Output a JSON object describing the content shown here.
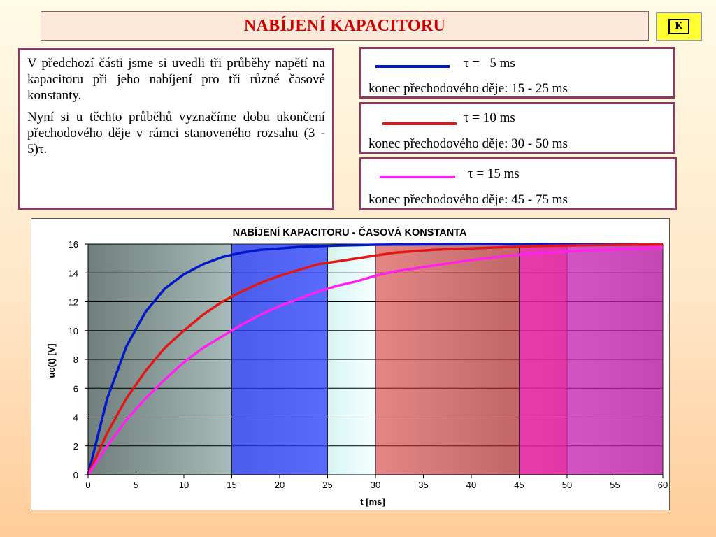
{
  "header": {
    "title": "NABÍJENÍ KAPACITORU",
    "k_button": "K"
  },
  "intro": {
    "p1": "V předchozí části jsme si uvedli tři průběhy napětí na kapacitoru při jeho nabíjení pro tři různé časové konstanty.",
    "p2": "Nyní si u těchto průběhů vyznačíme dobu ukončení přechodového děje v rámci stanoveného rozsahu (3 - 5)τ."
  },
  "legend": [
    {
      "tau": "τ =   5 ms",
      "end": "konec přechodového děje: 15 - 25 ms",
      "color": "#0018c8"
    },
    {
      "tau": "τ = 10 ms",
      "end": "konec přechodového děje: 30 - 50 ms",
      "color": "#e01818"
    },
    {
      "tau": "τ = 15 ms",
      "end": "konec přechodového děje: 45 - 75 ms",
      "color": "#ff22ee"
    }
  ],
  "chart_data": {
    "type": "line",
    "title": "NABÍJENÍ KAPACITORU - ČASOVÁ KONSTANTA",
    "xlabel": "t [ms]",
    "ylabel": "uc(t) [V]",
    "xlim": [
      0,
      60
    ],
    "ylim": [
      0,
      16
    ],
    "xticks": [
      0,
      5,
      10,
      15,
      20,
      25,
      30,
      35,
      40,
      45,
      50,
      55,
      60
    ],
    "yticks": [
      0,
      2,
      4,
      6,
      8,
      10,
      12,
      14,
      16
    ],
    "grid": true,
    "x": [
      0,
      2,
      4,
      6,
      8,
      10,
      12,
      14,
      16,
      18,
      20,
      22,
      24,
      26,
      28,
      30,
      32,
      34,
      36,
      38,
      40,
      42,
      44,
      46,
      48,
      50,
      52,
      54,
      56,
      58,
      60
    ],
    "series": [
      {
        "color": "#0018c8",
        "values": [
          0,
          5.3,
          8.9,
          11.3,
          12.9,
          13.9,
          14.6,
          15.1,
          15.4,
          15.6,
          15.7,
          15.8,
          15.85,
          15.9,
          15.92,
          15.95,
          15.96,
          15.97,
          15.98,
          15.98,
          15.99,
          15.99,
          15.99,
          16,
          16,
          16,
          16,
          16,
          16,
          16,
          16
        ]
      },
      {
        "color": "#e01818",
        "values": [
          0,
          2.9,
          5.3,
          7.2,
          8.8,
          10.0,
          11.1,
          12.0,
          12.7,
          13.3,
          13.8,
          14.2,
          14.6,
          14.8,
          15.0,
          15.2,
          15.4,
          15.5,
          15.6,
          15.65,
          15.7,
          15.75,
          15.8,
          15.85,
          15.88,
          15.9,
          15.92,
          15.93,
          15.95,
          15.96,
          15.97
        ]
      },
      {
        "color": "#ff22ee",
        "values": [
          0,
          2.0,
          3.8,
          5.3,
          6.6,
          7.8,
          8.8,
          9.6,
          10.4,
          11.1,
          11.7,
          12.2,
          12.7,
          13.1,
          13.4,
          13.8,
          14.1,
          14.3,
          14.5,
          14.7,
          14.9,
          15.05,
          15.2,
          15.3,
          15.4,
          15.5,
          15.55,
          15.6,
          15.65,
          15.7,
          15.75
        ]
      }
    ],
    "bands": [
      {
        "x0": 15,
        "x1": 25,
        "color": "#2838ff",
        "opacity": 0.72
      },
      {
        "x0": 30,
        "x1": 50,
        "color": "#d82020",
        "opacity": 0.55
      },
      {
        "x0": 45,
        "x1": 75,
        "color": "#ff20d8",
        "opacity": 0.6
      }
    ]
  }
}
